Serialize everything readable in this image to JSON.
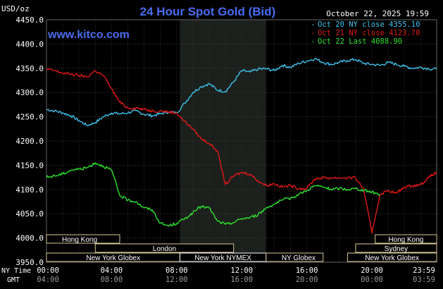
{
  "chart_data": {
    "type": "line",
    "title": "24 Hour Spot Gold (Bid)",
    "unit_label": "USD/oz",
    "watermark": "www.kitco.com",
    "timestamp": "October 22, 2025 19:59",
    "ylim": [
      3950,
      4450
    ],
    "yticks": [
      "4450.0",
      "4400.0",
      "4350.0",
      "4300.0",
      "4250.0",
      "4200.0",
      "4150.0",
      "4100.0",
      "4050.0",
      "4000.0",
      "3950.0"
    ],
    "ytick_values": [
      4450,
      4400,
      4350,
      4300,
      4250,
      4200,
      4150,
      4100,
      4050,
      4000,
      3950
    ],
    "x_axis": {
      "ny_label": "NY Time",
      "gmt_label": "GMT",
      "ny_ticks": [
        "00:00",
        "04:00",
        "08:00",
        "12:00",
        "16:00",
        "20:00",
        "23:59"
      ],
      "gmt_ticks": [
        "04:00",
        "08:00",
        "12:00",
        "16:00",
        "20:00",
        "00:00",
        "03:59"
      ],
      "tick_hours": [
        0,
        4,
        8,
        12,
        16,
        20,
        23.98
      ]
    },
    "shaded_hours": [
      8.2,
      13.5
    ],
    "sessions": [
      {
        "name": "Hong Kong",
        "start": 0,
        "end": 4.5,
        "row": 0,
        "align": "start"
      },
      {
        "name": "London",
        "start": 3,
        "end": 11.5,
        "row": 1,
        "align": "center"
      },
      {
        "name": "New York Globex",
        "start": 0,
        "end": 8.2,
        "row": 2,
        "align": "center"
      },
      {
        "name": "New York NYMEX",
        "start": 8.2,
        "end": 13.5,
        "row": 2,
        "align": "center",
        "highlight": true
      },
      {
        "name": "NY Globex",
        "start": 13.5,
        "end": 17.0,
        "row": 2,
        "align": "start"
      },
      {
        "name": "Hong Kong",
        "start": 20.2,
        "end": 23.98,
        "row": 0,
        "align": "center"
      },
      {
        "name": "Sydney",
        "start": 19.0,
        "end": 23.98,
        "row": 1,
        "align": "center"
      },
      {
        "name": "New York Globex",
        "start": 18.5,
        "end": 23.98,
        "row": 2,
        "align": "center"
      }
    ],
    "series": [
      {
        "name": "Oct 20 NY close 4355.10",
        "color": "#3ec0ec",
        "x": [
          0,
          0.5,
          1,
          1.5,
          2,
          2.5,
          3,
          3.5,
          4,
          4.5,
          5,
          5.5,
          6,
          6.5,
          7,
          7.5,
          8,
          8.5,
          9,
          9.5,
          10,
          10.5,
          11,
          11.5,
          12,
          12.5,
          13,
          13.5,
          14,
          14.5,
          15,
          15.5,
          16,
          16.5,
          17,
          17.5,
          18,
          18.5,
          19,
          19.5,
          20,
          20.5,
          21,
          21.5,
          22,
          22.5,
          23,
          23.5,
          23.98
        ],
        "y": [
          4265,
          4262,
          4258,
          4252,
          4242,
          4232,
          4238,
          4250,
          4258,
          4256,
          4258,
          4262,
          4255,
          4252,
          4256,
          4260,
          4258,
          4278,
          4300,
          4312,
          4318,
          4305,
          4302,
          4322,
          4345,
          4342,
          4348,
          4349,
          4345,
          4356,
          4352,
          4360,
          4365,
          4370,
          4362,
          4358,
          4362,
          4366,
          4368,
          4360,
          4358,
          4356,
          4362,
          4358,
          4354,
          4350,
          4352,
          4349,
          4348
        ]
      },
      {
        "name": "Oct 21 NY close 4123.70",
        "color": "#e01818",
        "x": [
          0,
          0.5,
          1,
          1.5,
          2,
          2.5,
          3,
          3.5,
          4,
          4.5,
          5,
          5.5,
          6,
          6.5,
          7,
          7.5,
          8,
          8.5,
          9,
          9.5,
          10,
          10.5,
          11,
          11.5,
          12,
          12.5,
          13,
          13.5,
          14,
          14.5,
          15,
          15.5,
          16,
          16.5,
          17,
          17.5,
          18,
          18.5,
          19,
          19.5,
          20,
          20.5,
          21,
          21.5,
          22,
          22.5,
          23,
          23.5,
          23.98
        ],
        "y": [
          4348,
          4345,
          4340,
          4338,
          4335,
          4332,
          4345,
          4335,
          4308,
          4280,
          4268,
          4268,
          4265,
          4262,
          4262,
          4260,
          4258,
          4240,
          4225,
          4205,
          4195,
          4180,
          4110,
          4128,
          4135,
          4132,
          4118,
          4108,
          4112,
          4105,
          4108,
          4102,
          4102,
          4122,
          4124,
          4124,
          4124,
          4124,
          4124,
          4100,
          4010,
          4090,
          4098,
          4092,
          4105,
          4108,
          4110,
          4125,
          4135
        ]
      },
      {
        "name": "Oct 22 Last 4088.90",
        "color": "#2ee02e",
        "x": [
          0,
          0.5,
          1,
          1.5,
          2,
          2.5,
          3,
          3.5,
          4,
          4.5,
          5,
          5.5,
          6,
          6.5,
          7,
          7.5,
          8,
          8.5,
          9,
          9.5,
          10,
          10.5,
          11,
          11.5,
          12,
          12.5,
          13,
          13.5,
          14,
          14.5,
          15,
          15.5,
          16,
          16.5,
          17,
          17.5,
          18,
          18.5,
          19,
          19.5,
          20,
          20.5
        ],
        "y": [
          4125,
          4128,
          4132,
          4140,
          4142,
          4145,
          4155,
          4148,
          4140,
          4088,
          4078,
          4075,
          4062,
          4058,
          4030,
          4025,
          4030,
          4040,
          4052,
          4065,
          4062,
          4035,
          4028,
          4032,
          4040,
          4042,
          4048,
          4062,
          4070,
          4078,
          4082,
          4090,
          4098,
          4108,
          4105,
          4100,
          4102,
          4100,
          4102,
          4098,
          4095,
          4089
        ]
      }
    ]
  }
}
